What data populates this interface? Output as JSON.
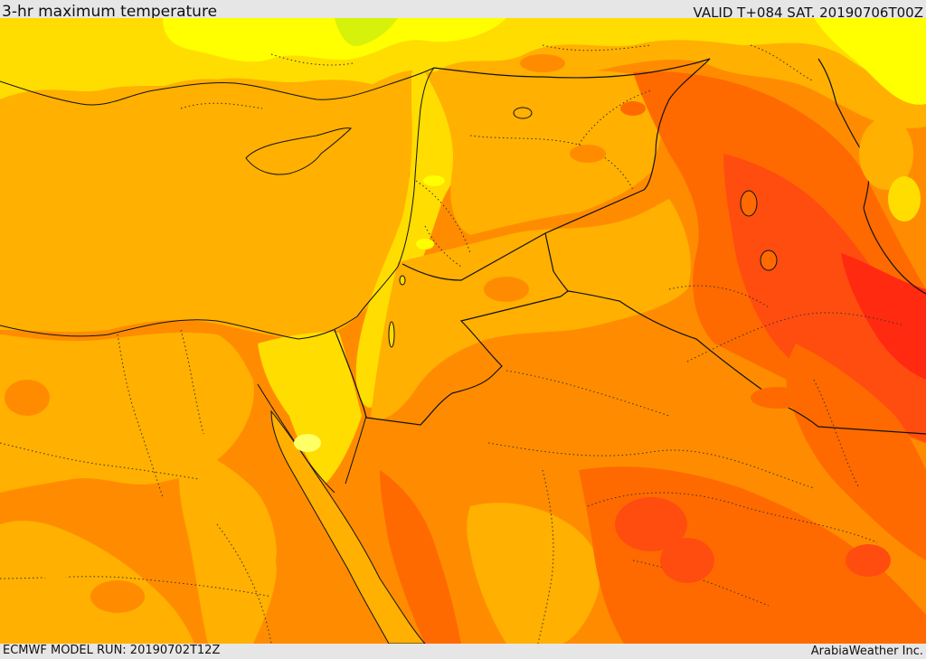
{
  "header": {
    "title": "3-hr maximum temperature",
    "valid": "VALID T+084 SAT. 20190706T00Z"
  },
  "footer": {
    "model_run": "ECMWF MODEL RUN: 20190702T12Z",
    "credit": "ArabiaWeather Inc."
  },
  "colors": {
    "coolest": "#ffff00",
    "cool": "#ffdd00",
    "mild": "#ffb000",
    "warm": "#ff8c00",
    "hot": "#ff6a00",
    "hotter": "#ff4d10",
    "hottest": "#ff2a10",
    "sea": "#ffb000",
    "greenish": "#d7f20a",
    "border": "#111111"
  }
}
